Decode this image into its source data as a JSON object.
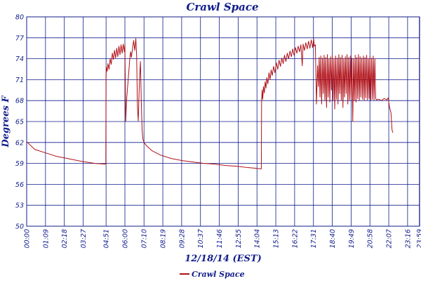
{
  "chart_data": {
    "type": "line",
    "title": "Crawl Space",
    "xlabel": "12/18/14 (EST)",
    "ylabel": "Degrees F",
    "ylim": [
      50,
      80
    ],
    "yticks": [
      50,
      53,
      56,
      59,
      62,
      65,
      68,
      71,
      74,
      77,
      80
    ],
    "xlim": [
      0,
      1440
    ],
    "xticks": [
      {
        "m": 0,
        "label": "00:00"
      },
      {
        "m": 69,
        "label": "01:09"
      },
      {
        "m": 138,
        "label": "02:18"
      },
      {
        "m": 207,
        "label": "03:27"
      },
      {
        "m": 291,
        "label": "04:51"
      },
      {
        "m": 360,
        "label": "06:00"
      },
      {
        "m": 430,
        "label": "07:10"
      },
      {
        "m": 499,
        "label": "08:19"
      },
      {
        "m": 568,
        "label": "09:28"
      },
      {
        "m": 637,
        "label": "10:37"
      },
      {
        "m": 706,
        "label": "11:46"
      },
      {
        "m": 775,
        "label": "12:55"
      },
      {
        "m": 844,
        "label": "14:04"
      },
      {
        "m": 913,
        "label": "15:13"
      },
      {
        "m": 982,
        "label": "16:22"
      },
      {
        "m": 1051,
        "label": "17:31"
      },
      {
        "m": 1120,
        "label": "18:40"
      },
      {
        "m": 1189,
        "label": "19:49"
      },
      {
        "m": 1258,
        "label": "20:58"
      },
      {
        "m": 1327,
        "label": "22:07"
      },
      {
        "m": 1396,
        "label": "23:16"
      },
      {
        "m": 1439,
        "label": "23:59"
      }
    ],
    "grid": true,
    "legend_position": "bottom-left",
    "colors": {
      "series": "#b01018",
      "axis": "#101c8a",
      "grid": "#101c8a"
    },
    "series": [
      {
        "name": "Crawl Space",
        "points": [
          [
            0,
            62.1
          ],
          [
            30,
            61.0
          ],
          [
            70,
            60.5
          ],
          [
            110,
            60.0
          ],
          [
            150,
            59.7
          ],
          [
            200,
            59.3
          ],
          [
            250,
            59.0
          ],
          [
            289,
            58.9
          ],
          [
            290,
            58.9
          ],
          [
            291,
            71.5
          ],
          [
            292,
            72.8
          ],
          [
            295,
            72.2
          ],
          [
            298,
            73.3
          ],
          [
            302,
            72.5
          ],
          [
            306,
            74.0
          ],
          [
            310,
            73.2
          ],
          [
            314,
            74.8
          ],
          [
            318,
            73.9
          ],
          [
            322,
            75.2
          ],
          [
            326,
            74.1
          ],
          [
            330,
            75.5
          ],
          [
            334,
            74.3
          ],
          [
            338,
            75.8
          ],
          [
            342,
            74.6
          ],
          [
            346,
            76.0
          ],
          [
            350,
            74.8
          ],
          [
            354,
            76.1
          ],
          [
            358,
            75.0
          ],
          [
            360,
            76.0
          ],
          [
            363,
            65.0
          ],
          [
            366,
            68.0
          ],
          [
            370,
            70.0
          ],
          [
            374,
            72.0
          ],
          [
            378,
            74.0
          ],
          [
            381,
            75.0
          ],
          [
            384,
            74.2
          ],
          [
            388,
            75.5
          ],
          [
            392,
            76.6
          ],
          [
            396,
            75.2
          ],
          [
            400,
            76.9
          ],
          [
            403,
            74.5
          ],
          [
            406,
            67.0
          ],
          [
            409,
            65.1
          ],
          [
            411,
            68.0
          ],
          [
            414,
            71.5
          ],
          [
            417,
            73.6
          ],
          [
            420,
            68.0
          ],
          [
            423,
            63.8
          ],
          [
            426,
            62.5
          ],
          [
            430,
            62.0
          ],
          [
            440,
            61.5
          ],
          [
            460,
            60.8
          ],
          [
            490,
            60.2
          ],
          [
            530,
            59.7
          ],
          [
            570,
            59.4
          ],
          [
            610,
            59.2
          ],
          [
            650,
            59.0
          ],
          [
            690,
            58.9
          ],
          [
            730,
            58.7
          ],
          [
            770,
            58.6
          ],
          [
            810,
            58.4
          ],
          [
            840,
            58.3
          ],
          [
            859,
            58.2
          ],
          [
            860,
            58.3
          ],
          [
            861,
            68.0
          ],
          [
            863,
            69.5
          ],
          [
            865,
            68.2
          ],
          [
            868,
            70.0
          ],
          [
            871,
            69.1
          ],
          [
            874,
            70.7
          ],
          [
            877,
            69.8
          ],
          [
            880,
            71.3
          ],
          [
            884,
            70.4
          ],
          [
            888,
            72.0
          ],
          [
            892,
            71.0
          ],
          [
            896,
            72.4
          ],
          [
            900,
            71.6
          ],
          [
            905,
            72.9
          ],
          [
            910,
            72.0
          ],
          [
            915,
            73.4
          ],
          [
            920,
            72.5
          ],
          [
            925,
            73.8
          ],
          [
            930,
            72.9
          ],
          [
            935,
            74.1
          ],
          [
            940,
            73.3
          ],
          [
            945,
            74.5
          ],
          [
            950,
            73.6
          ],
          [
            955,
            74.8
          ],
          [
            960,
            74.0
          ],
          [
            965,
            75.1
          ],
          [
            970,
            74.3
          ],
          [
            975,
            75.4
          ],
          [
            980,
            74.5
          ],
          [
            985,
            75.6
          ],
          [
            990,
            74.8
          ],
          [
            995,
            75.8
          ],
          [
            1000,
            75.0
          ],
          [
            1005,
            76.0
          ],
          [
            1010,
            73.0
          ],
          [
            1013,
            76.1
          ],
          [
            1018,
            75.2
          ],
          [
            1023,
            76.3
          ],
          [
            1028,
            75.4
          ],
          [
            1033,
            76.5
          ],
          [
            1038,
            75.5
          ],
          [
            1043,
            76.7
          ],
          [
            1048,
            75.6
          ],
          [
            1052,
            76.8
          ],
          [
            1054,
            75.8
          ],
          [
            1058,
            76.0
          ],
          [
            1062,
            67.5
          ],
          [
            1066,
            73.0
          ],
          [
            1069,
            70.0
          ],
          [
            1072,
            74.2
          ],
          [
            1075,
            68.5
          ],
          [
            1078,
            74.4
          ],
          [
            1081,
            67.5
          ],
          [
            1084,
            74.1
          ],
          [
            1087,
            69.0
          ],
          [
            1090,
            74.5
          ],
          [
            1093,
            68.0
          ],
          [
            1096,
            74.2
          ],
          [
            1099,
            67.0
          ],
          [
            1102,
            74.6
          ],
          [
            1105,
            68.5
          ],
          [
            1108,
            74.0
          ],
          [
            1111,
            67.8
          ],
          [
            1114,
            74.3
          ],
          [
            1117,
            69.5
          ],
          [
            1120,
            74.5
          ],
          [
            1123,
            68.0
          ],
          [
            1126,
            74.0
          ],
          [
            1129,
            66.8
          ],
          [
            1132,
            74.4
          ],
          [
            1135,
            68.2
          ],
          [
            1138,
            74.1
          ],
          [
            1141,
            67.5
          ],
          [
            1144,
            74.6
          ],
          [
            1147,
            69.0
          ],
          [
            1150,
            74.2
          ],
          [
            1153,
            68.0
          ],
          [
            1156,
            74.5
          ],
          [
            1159,
            67.0
          ],
          [
            1162,
            74.0
          ],
          [
            1165,
            68.5
          ],
          [
            1168,
            74.3
          ],
          [
            1171,
            69.0
          ],
          [
            1174,
            74.6
          ],
          [
            1177,
            67.5
          ],
          [
            1180,
            74.2
          ],
          [
            1183,
            68.0
          ],
          [
            1186,
            74.4
          ],
          [
            1189,
            68.3
          ],
          [
            1192,
            74.1
          ],
          [
            1195,
            65.0
          ],
          [
            1198,
            74.0
          ],
          [
            1201,
            68.0
          ],
          [
            1204,
            74.5
          ],
          [
            1207,
            67.8
          ],
          [
            1210,
            74.2
          ],
          [
            1213,
            68.3
          ],
          [
            1216,
            74.6
          ],
          [
            1219,
            68.0
          ],
          [
            1222,
            74.3
          ],
          [
            1225,
            68.5
          ],
          [
            1228,
            74.1
          ],
          [
            1231,
            68.2
          ],
          [
            1234,
            74.4
          ],
          [
            1237,
            68.0
          ],
          [
            1240,
            74.2
          ],
          [
            1243,
            68.4
          ],
          [
            1246,
            74.5
          ],
          [
            1249,
            68.1
          ],
          [
            1252,
            74.0
          ],
          [
            1255,
            68.3
          ],
          [
            1258,
            74.3
          ],
          [
            1261,
            68.0
          ],
          [
            1264,
            74.1
          ],
          [
            1267,
            68.2
          ],
          [
            1270,
            74.4
          ],
          [
            1273,
            68.1
          ],
          [
            1276,
            74.0
          ],
          [
            1279,
            68.3
          ],
          [
            1282,
            68.1
          ],
          [
            1290,
            68.2
          ],
          [
            1300,
            68.0
          ],
          [
            1310,
            68.3
          ],
          [
            1320,
            68.1
          ],
          [
            1325,
            68.4
          ],
          [
            1330,
            67.0
          ],
          [
            1335,
            66.3
          ],
          [
            1339,
            63.8
          ],
          [
            1342,
            63.4
          ]
        ]
      }
    ]
  }
}
